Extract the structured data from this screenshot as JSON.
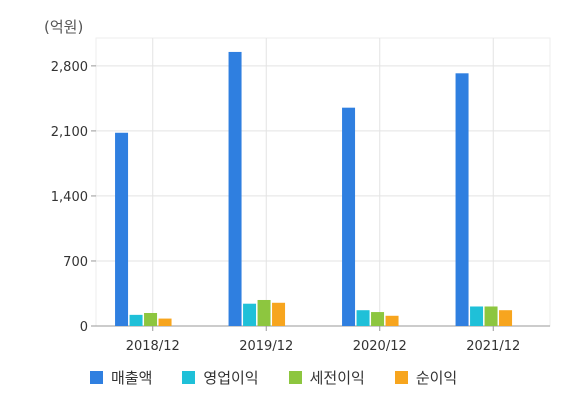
{
  "chart_data": {
    "type": "bar",
    "unit_label": "(억원)",
    "categories": [
      "2018/12",
      "2019/12",
      "2020/12",
      "2021/12"
    ],
    "series": [
      {
        "name": "매출액",
        "color": "#2F7FE0",
        "values": [
          2080,
          2950,
          2350,
          2720
        ]
      },
      {
        "name": "영업이익",
        "color": "#1FC0D8",
        "values": [
          120,
          240,
          170,
          210
        ]
      },
      {
        "name": "세전이익",
        "color": "#8DC63F",
        "values": [
          140,
          280,
          150,
          210
        ]
      },
      {
        "name": "순이익",
        "color": "#F7A51E",
        "values": [
          80,
          250,
          110,
          170
        ]
      }
    ],
    "yticks": [
      "0",
      "700",
      "1,400",
      "2,100",
      "2,800"
    ],
    "ytick_values": [
      0,
      700,
      1400,
      2100,
      2800
    ],
    "ylim": [
      0,
      3100
    ],
    "grid": true,
    "legend_position": "bottom"
  }
}
